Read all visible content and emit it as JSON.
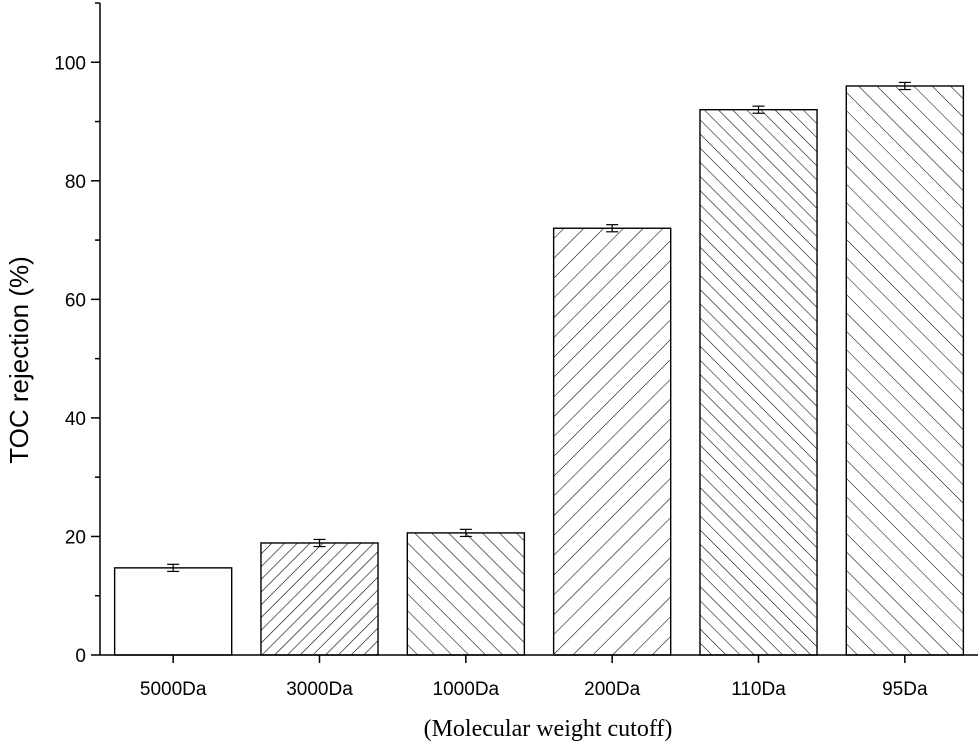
{
  "chart_data": {
    "type": "bar",
    "title": "",
    "xlabel": "(Molecular weight cutoff)",
    "ylabel": "TOC rejection (%)",
    "ylim": [
      0,
      110
    ],
    "yticks": [
      0,
      20,
      40,
      60,
      80,
      100
    ],
    "categories": [
      "5000Da",
      "3000Da",
      "1000Da",
      "200Da",
      "110Da",
      "95Da"
    ],
    "values": [
      14.7,
      18.9,
      20.6,
      72.0,
      92.0,
      96.0
    ],
    "errors": [
      0.6,
      0.6,
      0.6,
      0.6,
      0.6,
      0.6
    ],
    "patterns": [
      "none",
      "hatch-right-dense",
      "hatch-left",
      "hatch-right",
      "hatch-left-dense",
      "hatch-left-light"
    ],
    "grid": false,
    "legend": "none"
  }
}
